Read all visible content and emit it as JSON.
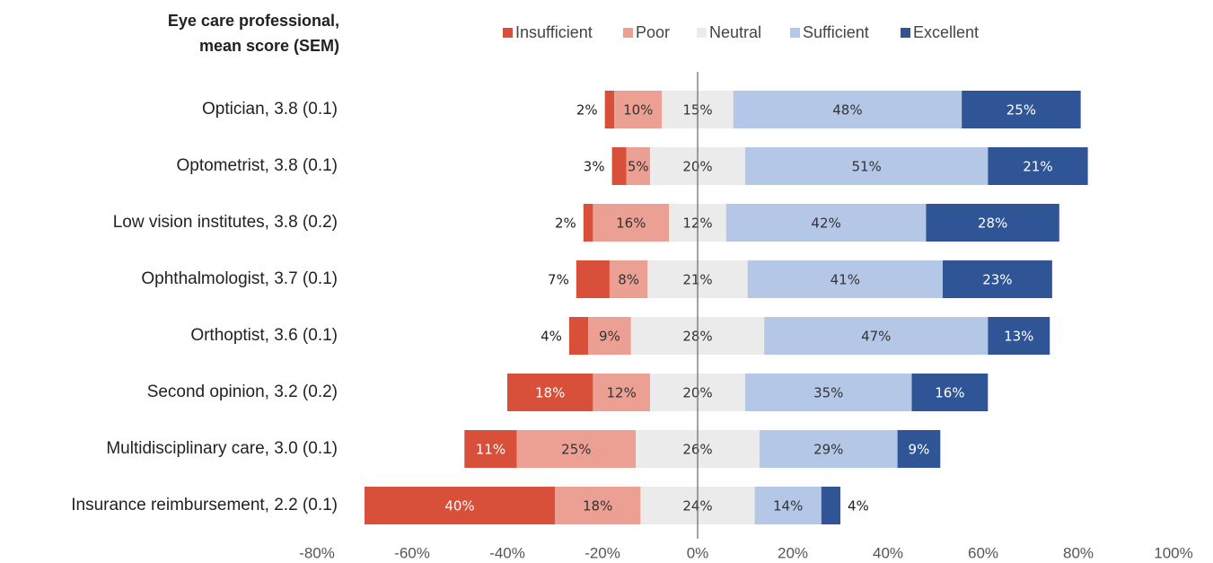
{
  "chart_data": {
    "type": "diverging-stacked-bar",
    "title": [
      "Eye care professional,",
      "mean score (SEM)"
    ],
    "categories": [
      "Optician, 3.8 (0.1)",
      "Optometrist, 3.8 (0.1)",
      "Low vision institutes, 3.8 (0.2)",
      "Ophthalmologist, 3.7 (0.1)",
      "Orthoptist, 3.6 (0.1)",
      "Second opinion, 3.2 (0.2)",
      "Multidisciplinary care, 3.0 (0.1)",
      "Insurance reimbursement, 2.2 (0.1)"
    ],
    "series": [
      {
        "name": "Insufficient",
        "color": "#d9503a",
        "values": [
          2,
          3,
          2,
          7,
          4,
          18,
          11,
          40
        ],
        "value_labels": [
          "2%",
          "3%",
          "2%",
          "7%",
          "4%",
          "18%",
          "11%",
          "40%"
        ]
      },
      {
        "name": "Poor",
        "color": "#eba093",
        "values": [
          10,
          5,
          16,
          8,
          9,
          12,
          25,
          18
        ],
        "value_labels": [
          "10%",
          "5%",
          "16%",
          "8%",
          "9%",
          "12%",
          "25%",
          "18%"
        ]
      },
      {
        "name": "Neutral",
        "color": "#ebebeb",
        "values": [
          15,
          20,
          12,
          21,
          28,
          20,
          26,
          24
        ],
        "value_labels": [
          "15%",
          "20%",
          "12%",
          "21%",
          "28%",
          "20%",
          "26%",
          "24%"
        ]
      },
      {
        "name": "Sufficient",
        "color": "#b4c7e7",
        "values": [
          48,
          51,
          42,
          41,
          47,
          35,
          29,
          14
        ],
        "value_labels": [
          "48%",
          "51%",
          "42%",
          "41%",
          "47%",
          "35%",
          "29%",
          "14%"
        ]
      },
      {
        "name": "Excellent",
        "color": "#2f5597",
        "values": [
          25,
          21,
          28,
          23,
          13,
          16,
          9,
          4
        ],
        "value_labels": [
          "25%",
          "21%",
          "28%",
          "23%",
          "13%",
          "16%",
          "9%",
          "4%"
        ]
      }
    ],
    "neutral_series": 2,
    "xlim": [
      -80,
      100
    ],
    "xticks": [
      {
        "value": -80,
        "label": "-80%"
      },
      {
        "value": -60,
        "label": "-60%"
      },
      {
        "value": -40,
        "label": "-40%"
      },
      {
        "value": -20,
        "label": "-20%"
      },
      {
        "value": 0,
        "label": "0%"
      },
      {
        "value": 20,
        "label": "20%"
      },
      {
        "value": 40,
        "label": "40%"
      },
      {
        "value": 60,
        "label": "60%"
      },
      {
        "value": 80,
        "label": "80%"
      },
      {
        "value": 100,
        "label": "100%"
      }
    ],
    "legend": "top"
  }
}
